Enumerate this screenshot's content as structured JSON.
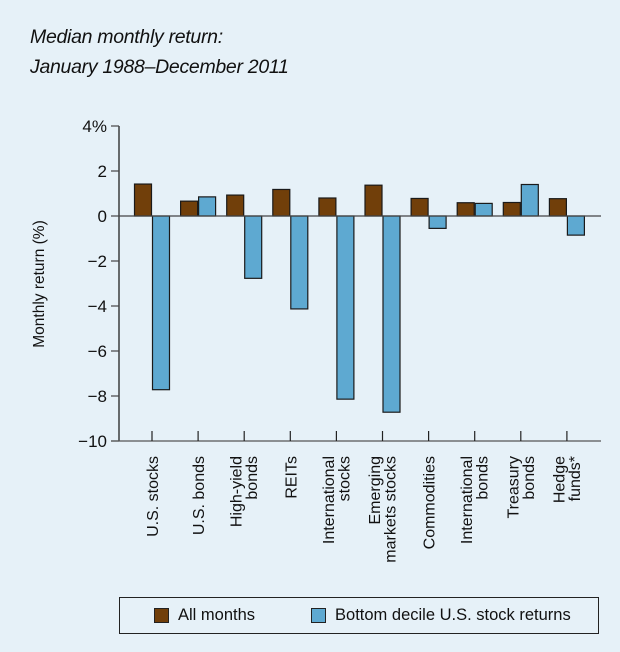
{
  "title": {
    "line1": "Median monthly return:",
    "line2": "January 1988–December 2011"
  },
  "chart_data": {
    "type": "bar",
    "title": "Median monthly return: January 1988–December 2011",
    "xlabel": "",
    "ylabel": "Monthly return (%)",
    "ylim": [
      -10,
      4
    ],
    "yticks": [
      4,
      2,
      0,
      -2,
      -4,
      -6,
      -8,
      -10
    ],
    "ytick_labels": [
      "4%",
      "2",
      "0",
      "−2",
      "−4",
      "−6",
      "−8",
      "−10"
    ],
    "categories": [
      [
        "U.S. stocks"
      ],
      [
        "U.S. bonds"
      ],
      [
        "High-yield",
        "bonds"
      ],
      [
        "REITs"
      ],
      [
        "International",
        "stocks"
      ],
      [
        "Emerging",
        "markets stocks"
      ],
      [
        "Commodities"
      ],
      [
        "International",
        "bonds"
      ],
      [
        "Treasury",
        "bonds"
      ],
      [
        "Hedge",
        "funds*"
      ]
    ],
    "series": [
      {
        "name": "All months",
        "color": "#713f0a",
        "values": [
          1.42,
          0.66,
          0.93,
          1.18,
          0.8,
          1.37,
          0.78,
          0.59,
          0.6,
          0.77
        ]
      },
      {
        "name": "Bottom decile U.S. stock returns",
        "color": "#5ea9d1",
        "values": [
          -7.72,
          0.85,
          -2.77,
          -4.13,
          -8.14,
          -8.72,
          -0.55,
          0.56,
          1.4,
          -0.85
        ]
      }
    ],
    "grid": false,
    "legend": "bottom"
  }
}
